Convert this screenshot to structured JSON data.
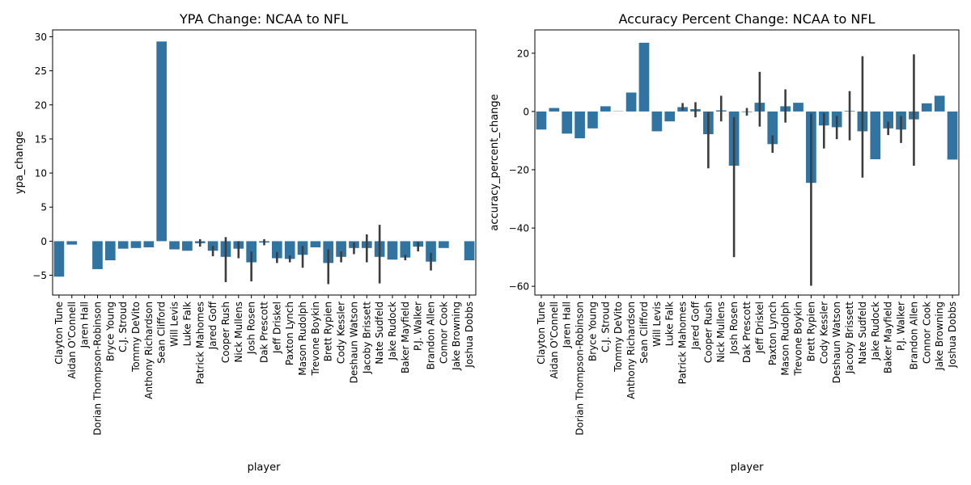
{
  "chart_data": [
    {
      "type": "bar",
      "title": "YPA Change: NCAA to NFL",
      "xlabel": "player",
      "ylabel": "ypa_change",
      "ylim": [
        -7.9,
        31
      ],
      "yticks": [
        -5,
        0,
        5,
        10,
        15,
        20,
        25,
        30
      ],
      "grid": false,
      "bar_color": "#3274a1",
      "errorbar_color": "#3d3d3d",
      "categories": [
        "Clayton Tune",
        "Aidan O'Connell",
        "Jaren Hall",
        "Dorian Thompson-Robinson",
        "Bryce Young",
        "C.J. Stroud",
        "Tommy DeVito",
        "Anthony Richardson",
        "Sean Clifford",
        "Will Levis",
        "Luke Falk",
        "Patrick Mahomes",
        "Jared Goff",
        "Cooper Rush",
        "Nick Mullens",
        "Josh Rosen",
        "Dak Prescott",
        "Jeff Driskel",
        "Paxton Lynch",
        "Mason Rudolph",
        "Trevone Boykin",
        "Brett Rypien",
        "Cody Kessler",
        "Deshaun Watson",
        "Jacoby Brissett",
        "Nate Sudfeld",
        "Jake Rudock",
        "Baker Mayfield",
        "P.J. Walker",
        "Brandon Allen",
        "Connor Cook",
        "Jake Browning",
        "Joshua Dobbs"
      ],
      "values": [
        -5.2,
        -0.5,
        0,
        -4.1,
        -2.8,
        -1.1,
        -1.0,
        -0.9,
        29.3,
        -1.2,
        -1.4,
        -0.3,
        -1.4,
        -2.3,
        -1.1,
        -3.1,
        -0.2,
        -2.5,
        -2.6,
        -2.0,
        -0.9,
        -3.2,
        -2.3,
        -1.0,
        -1.0,
        -2.3,
        -2.7,
        -2.4,
        -0.8,
        -3.0,
        -1.0,
        0,
        -2.8
      ],
      "errors": [
        null,
        null,
        null,
        null,
        null,
        null,
        null,
        null,
        null,
        null,
        null,
        [
          -0.8,
          0.3
        ],
        [
          -2.2,
          -0.7
        ],
        [
          -6.0,
          0.6
        ],
        [
          -2.5,
          0.0
        ],
        [
          -5.9,
          -1.5
        ],
        [
          -0.6,
          0.3
        ],
        [
          -3.2,
          -1.6
        ],
        [
          -3.1,
          -2.1
        ],
        [
          -3.9,
          -0.7
        ],
        null,
        [
          -6.3,
          -1.2
        ],
        [
          -3.1,
          -1.5
        ],
        [
          -1.9,
          -0.2
        ],
        [
          -3.1,
          1.0
        ],
        [
          -6.2,
          2.4
        ],
        null,
        [
          -2.8,
          -2.0
        ],
        [
          -1.5,
          -0.1
        ],
        [
          -4.3,
          -1.7
        ],
        null,
        null,
        null
      ]
    },
    {
      "type": "bar",
      "title": "Accuracy Percent Change: NCAA to NFL",
      "xlabel": "player",
      "ylabel": "accuracy_percent_change",
      "ylim": [
        -63,
        28
      ],
      "yticks": [
        -60,
        -40,
        -20,
        0,
        20
      ],
      "grid": false,
      "bar_color": "#3274a1",
      "errorbar_color": "#3d3d3d",
      "categories": [
        "Clayton Tune",
        "Aidan O'Connell",
        "Jaren Hall",
        "Dorian Thompson-Robinson",
        "Bryce Young",
        "C.J. Stroud",
        "Tommy DeVito",
        "Anthony Richardson",
        "Sean Clifford",
        "Will Levis",
        "Luke Falk",
        "Patrick Mahomes",
        "Jared Goff",
        "Cooper Rush",
        "Nick Mullens",
        "Josh Rosen",
        "Dak Prescott",
        "Jeff Driskel",
        "Paxton Lynch",
        "Mason Rudolph",
        "Trevone Boykin",
        "Brett Rypien",
        "Cody Kessler",
        "Deshaun Watson",
        "Jacoby Brissett",
        "Nate Sudfeld",
        "Jake Rudock",
        "Baker Mayfield",
        "P.J. Walker",
        "Brandon Allen",
        "Connor Cook",
        "Jake Browning",
        "Joshua Dobbs"
      ],
      "values": [
        -6.2,
        1.2,
        -7.6,
        -9.2,
        -5.8,
        1.8,
        0.1,
        6.5,
        23.6,
        -6.8,
        -3.4,
        1.5,
        0.8,
        -7.8,
        0.4,
        -18.6,
        -0.2,
        3.0,
        -11.2,
        1.8,
        3.0,
        -24.5,
        -4.8,
        -5.4,
        0.2,
        -6.8,
        -16.4,
        -5.8,
        -6.2,
        -2.7,
        2.8,
        5.4,
        -16.5
      ],
      "errors": [
        null,
        null,
        null,
        null,
        null,
        null,
        null,
        null,
        null,
        null,
        null,
        [
          0.4,
          2.9
        ],
        [
          -2.0,
          3.2
        ],
        [
          -19.5,
          -0.2
        ],
        [
          -3.4,
          5.4
        ],
        [
          -50.0,
          -1.9
        ],
        [
          -1.4,
          1.2
        ],
        [
          -5.2,
          13.6
        ],
        [
          -14.2,
          -8.2
        ],
        [
          -3.8,
          7.6
        ],
        null,
        [
          -59.8,
          -0.7
        ],
        [
          -12.7,
          -0.5
        ],
        [
          -9.5,
          -1.5
        ],
        [
          -9.9,
          7.0
        ],
        [
          -22.7,
          19.0
        ],
        null,
        [
          -8.1,
          -3.5
        ],
        [
          -10.8,
          -1.6
        ],
        [
          -18.6,
          19.6
        ],
        null,
        null,
        null
      ]
    }
  ]
}
